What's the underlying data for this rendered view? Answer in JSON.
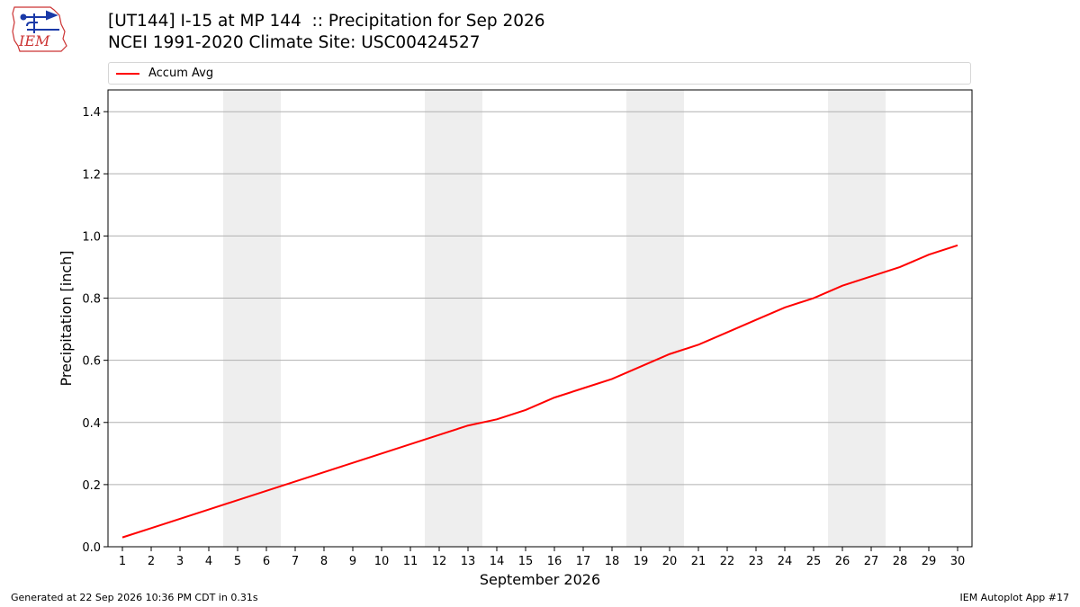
{
  "header": {
    "title_line1": "[UT144] I-15 at MP 144  :: Precipitation for Sep 2026",
    "title_line2": "NCEI 1991-2020 Climate Site: USC00424527",
    "logo_text": "IEM"
  },
  "footer": {
    "generated": "Generated at 22 Sep 2026 10:36 PM CDT in 0.31s",
    "app": "IEM Autoplot App #17"
  },
  "colors": {
    "line": "#ff0000",
    "weekend_band": "#eeeeee",
    "grid": "#b0b0b0"
  },
  "chart_data": {
    "type": "line",
    "xlabel": "September 2026",
    "ylabel": "Precipitation [inch]",
    "xlim": [
      0.5,
      30.5
    ],
    "ylim": [
      0,
      1.47
    ],
    "yticks": [
      0.0,
      0.2,
      0.4,
      0.6,
      0.8,
      1.0,
      1.2,
      1.4
    ],
    "ytick_labels": [
      "0.0",
      "0.2",
      "0.4",
      "0.6",
      "0.8",
      "1.0",
      "1.2",
      "1.4"
    ],
    "x": [
      1,
      2,
      3,
      4,
      5,
      6,
      7,
      8,
      9,
      10,
      11,
      12,
      13,
      14,
      15,
      16,
      17,
      18,
      19,
      20,
      21,
      22,
      23,
      24,
      25,
      26,
      27,
      28,
      29,
      30
    ],
    "xtick_labels": [
      "1",
      "2",
      "3",
      "4",
      "5",
      "6",
      "7",
      "8",
      "9",
      "10",
      "11",
      "12",
      "13",
      "14",
      "15",
      "16",
      "17",
      "18",
      "19",
      "20",
      "21",
      "22",
      "23",
      "24",
      "25",
      "26",
      "27",
      "28",
      "29",
      "30"
    ],
    "weekend_days": [
      [
        5,
        6
      ],
      [
        12,
        13
      ],
      [
        19,
        20
      ],
      [
        26,
        27
      ]
    ],
    "grid": "horizontal",
    "legend_position": "top",
    "series": [
      {
        "name": "Accum Avg",
        "values": [
          0.03,
          0.06,
          0.09,
          0.12,
          0.15,
          0.18,
          0.21,
          0.24,
          0.27,
          0.3,
          0.33,
          0.36,
          0.39,
          0.41,
          0.44,
          0.48,
          0.51,
          0.54,
          0.58,
          0.62,
          0.65,
          0.69,
          0.73,
          0.77,
          0.8,
          0.84,
          0.87,
          0.9,
          0.94,
          0.97
        ]
      }
    ]
  }
}
